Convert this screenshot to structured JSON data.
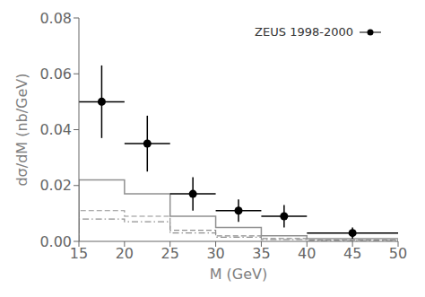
{
  "chart_data": {
    "type": "step",
    "xlabel": "M (GeV)",
    "ylabel": "dσ/dM (nb/GeV)",
    "xlim": [
      15,
      50
    ],
    "ylim": [
      0,
      0.08
    ],
    "xticks": [
      15,
      20,
      25,
      30,
      35,
      40,
      45,
      50
    ],
    "yticks": [
      {
        "value": 0,
        "label": "0.00"
      },
      0.02,
      0.04,
      0.06,
      0.08
    ],
    "legend": "upper right",
    "bins": [
      15,
      20,
      25,
      30,
      35,
      40,
      50
    ],
    "series": [
      {
        "type": "step",
        "color": "#909090",
        "line_style": "solid",
        "values": [
          0.022,
          0.017,
          0.009,
          0.005,
          0.002,
          0.001
        ]
      },
      {
        "type": "step",
        "color": "#909090",
        "line_style": "dashed",
        "values": [
          0.011,
          0.009,
          0.004,
          0.002,
          0.001,
          0.0005
        ]
      },
      {
        "type": "step",
        "color": "#909090",
        "line_style": "dashdot",
        "values": [
          0.008,
          0.007,
          0.003,
          0.0015,
          0.0007,
          0.0003
        ]
      },
      {
        "type": "scatter",
        "name": "ZEUS 1998-2000",
        "color": "#000000",
        "marker": "circle",
        "x": [
          17.5,
          22.5,
          27.5,
          32.5,
          37.5,
          45.0
        ],
        "values": [
          0.05,
          0.035,
          0.017,
          0.011,
          0.009,
          0.003
        ],
        "xerr": [
          2.5,
          2.5,
          2.5,
          2.5,
          2.5,
          5.0
        ],
        "yerr_lo": [
          0.013,
          0.01,
          0.006,
          0.004,
          0.004,
          0.002
        ],
        "yerr_hi": [
          0.013,
          0.01,
          0.006,
          0.004,
          0.004,
          0.002
        ]
      }
    ]
  }
}
